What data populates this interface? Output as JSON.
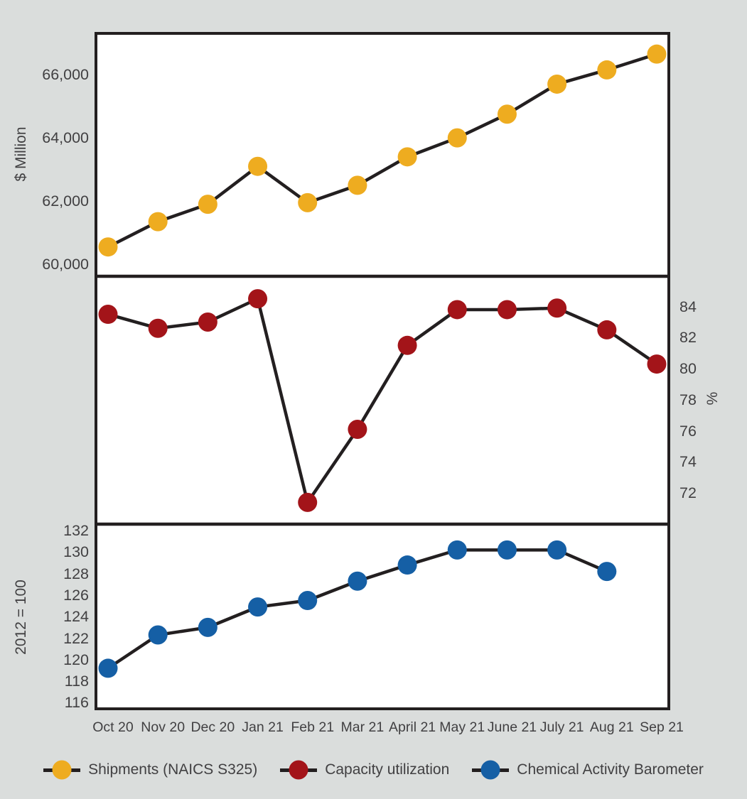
{
  "chart_data": {
    "type": "line",
    "title": "",
    "background": "#dadddc",
    "line_color": "#231f20",
    "text_color": "#414042",
    "panel_fill": "#ffffff",
    "categories": [
      "Oct 20",
      "Nov 20",
      "Dec 20",
      "Jan 21",
      "Feb 21",
      "Mar 21",
      "April 21",
      "May 21",
      "June 21",
      "July 21",
      "Aug 21",
      "Sep 21"
    ],
    "panels": [
      {
        "id": "shipments",
        "series_name": "Shipments (NAICS S325)",
        "axis_label": "$ Million",
        "axis_side": "left",
        "color": "#eeac20",
        "ticks": [
          "60,000",
          "62,000",
          "64,000",
          "66,000"
        ],
        "tick_values": [
          60000,
          62000,
          64000,
          66000
        ],
        "ylim": [
          59600,
          67350
        ],
        "values": [
          60550,
          61350,
          61900,
          63100,
          61950,
          62500,
          63400,
          64000,
          64750,
          65700,
          66150,
          66650
        ]
      },
      {
        "id": "capacity-utilization",
        "series_name": "Capacity utilization",
        "axis_label": "%",
        "axis_side": "right",
        "color": "#a31419",
        "ticks": [
          "72",
          "74",
          "76",
          "78",
          "80",
          "82",
          "84"
        ],
        "tick_values": [
          72,
          74,
          76,
          78,
          80,
          82,
          84
        ],
        "ylim": [
          70.0,
          85.9
        ],
        "values": [
          83.5,
          82.6,
          83.0,
          84.5,
          71.4,
          76.1,
          81.5,
          83.8,
          83.8,
          83.9,
          82.5,
          80.3
        ]
      },
      {
        "id": "chemical-activity-barometer",
        "series_name": "Chemical Activity Barometer",
        "axis_label": "2012 = 100",
        "axis_side": "left",
        "color": "#155fa5",
        "ticks": [
          "116",
          "118",
          "120",
          "122",
          "124",
          "126",
          "128",
          "130",
          "132"
        ],
        "tick_values": [
          116,
          118,
          120,
          122,
          124,
          126,
          128,
          130,
          132
        ],
        "ylim": [
          115.3,
          132.6
        ],
        "values": [
          119.2,
          122.3,
          123.0,
          124.9,
          125.5,
          127.3,
          128.8,
          130.2,
          130.2,
          130.2,
          128.2,
          null
        ]
      }
    ],
    "legend_position": "bottom"
  }
}
